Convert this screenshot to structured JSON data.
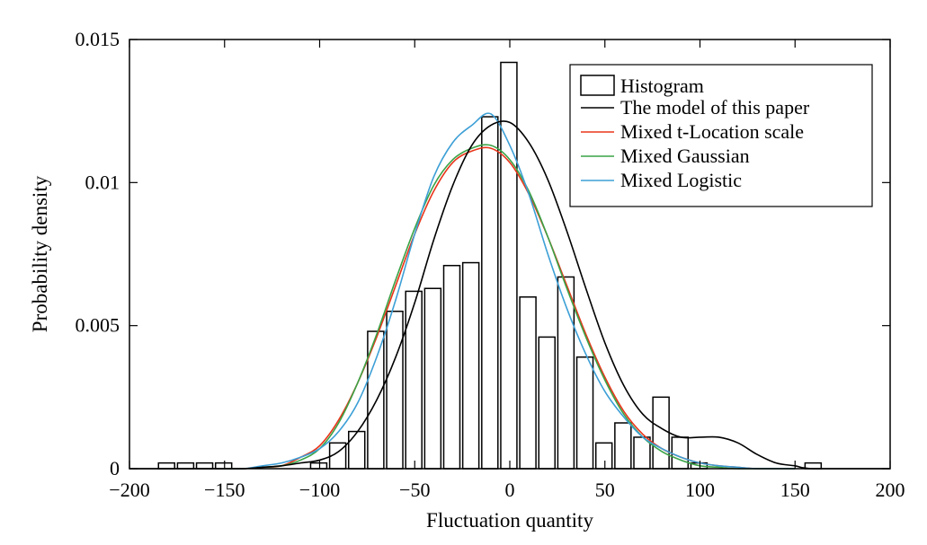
{
  "chart_data": {
    "type": "bar",
    "xlabel": "Fluctuation quantity",
    "ylabel": "Probability density",
    "xlim": [
      -200,
      200
    ],
    "ylim": [
      0,
      0.015
    ],
    "x_ticks": [
      -200,
      -150,
      -100,
      -50,
      0,
      50,
      100,
      150,
      200
    ],
    "x_tick_labels": [
      "−200",
      "−150",
      "−100",
      "−50",
      "0",
      "50",
      "100",
      "150",
      "200"
    ],
    "y_ticks": [
      0,
      0.005,
      0.01,
      0.015
    ],
    "y_tick_labels": [
      "0",
      "0.005",
      "0.01",
      "0.015"
    ],
    "grid": false,
    "legend_position": "top-right",
    "histogram": {
      "name": "Histogram",
      "bin_width": 8.5,
      "bins": [
        {
          "x": -180.5,
          "y": 0.0002
        },
        {
          "x": -170.5,
          "y": 0.0002
        },
        {
          "x": -160.5,
          "y": 0.0002
        },
        {
          "x": -150.5,
          "y": 0.0002
        },
        {
          "x": -100.5,
          "y": 0.0002
        },
        {
          "x": -90.5,
          "y": 0.0009
        },
        {
          "x": -80.5,
          "y": 0.0013
        },
        {
          "x": -70.5,
          "y": 0.0048
        },
        {
          "x": -60.5,
          "y": 0.0055
        },
        {
          "x": -50.5,
          "y": 0.0062
        },
        {
          "x": -40.5,
          "y": 0.0063
        },
        {
          "x": -30.5,
          "y": 0.0071
        },
        {
          "x": -20.5,
          "y": 0.0072
        },
        {
          "x": -10.5,
          "y": 0.0123
        },
        {
          "x": -0.5,
          "y": 0.0142
        },
        {
          "x": 9.5,
          "y": 0.006
        },
        {
          "x": 19.5,
          "y": 0.0046
        },
        {
          "x": 29.5,
          "y": 0.0067
        },
        {
          "x": 39.5,
          "y": 0.0039
        },
        {
          "x": 49.5,
          "y": 0.0009
        },
        {
          "x": 59.5,
          "y": 0.0016
        },
        {
          "x": 69.5,
          "y": 0.0011
        },
        {
          "x": 79.5,
          "y": 0.0025
        },
        {
          "x": 89.5,
          "y": 0.0011
        },
        {
          "x": 99.5,
          "y": 0.0002
        },
        {
          "x": 159.5,
          "y": 0.0002
        }
      ]
    },
    "series": [
      {
        "name": "The model of this paper",
        "color": "#000000",
        "points": [
          [
            -200,
            0
          ],
          [
            -150,
            0.0
          ],
          [
            -140,
            0.0
          ],
          [
            -130,
            5e-05
          ],
          [
            -120,
            0.0001
          ],
          [
            -110,
            0.0002
          ],
          [
            -100,
            0.0003
          ],
          [
            -90,
            0.0006
          ],
          [
            -80,
            0.0013
          ],
          [
            -70,
            0.0024
          ],
          [
            -60,
            0.0039
          ],
          [
            -50,
            0.0058
          ],
          [
            -40,
            0.008
          ],
          [
            -30,
            0.0099
          ],
          [
            -20,
            0.0113
          ],
          [
            -10,
            0.012
          ],
          [
            0,
            0.0121
          ],
          [
            10,
            0.0114
          ],
          [
            20,
            0.0101
          ],
          [
            30,
            0.0083
          ],
          [
            40,
            0.0063
          ],
          [
            50,
            0.0044
          ],
          [
            60,
            0.0029
          ],
          [
            70,
            0.0019
          ],
          [
            80,
            0.0014
          ],
          [
            90,
            0.0011
          ],
          [
            100,
            0.0011
          ],
          [
            110,
            0.0011
          ],
          [
            120,
            0.0009
          ],
          [
            130,
            0.0005
          ],
          [
            140,
            0.0002
          ],
          [
            150,
            0.0001
          ],
          [
            160,
            0.0
          ],
          [
            200,
            0
          ]
        ]
      },
      {
        "name": "Mixed t-Location scale",
        "color": "#e8351a",
        "points": [
          [
            -150,
            0.0
          ],
          [
            -140,
            0.0
          ],
          [
            -130,
            5e-05
          ],
          [
            -120,
            0.0001
          ],
          [
            -110,
            0.0004
          ],
          [
            -100,
            0.0008
          ],
          [
            -90,
            0.0017
          ],
          [
            -80,
            0.003
          ],
          [
            -70,
            0.0046
          ],
          [
            -60,
            0.0064
          ],
          [
            -50,
            0.0082
          ],
          [
            -40,
            0.0097
          ],
          [
            -30,
            0.0107
          ],
          [
            -20,
            0.0111
          ],
          [
            -10,
            0.0112
          ],
          [
            0,
            0.0107
          ],
          [
            10,
            0.0096
          ],
          [
            20,
            0.0081
          ],
          [
            30,
            0.0064
          ],
          [
            40,
            0.0047
          ],
          [
            50,
            0.0032
          ],
          [
            60,
            0.002
          ],
          [
            70,
            0.0012
          ],
          [
            80,
            0.0007
          ],
          [
            90,
            0.0004
          ],
          [
            100,
            0.0002
          ],
          [
            110,
            0.0001
          ],
          [
            120,
            5e-05
          ],
          [
            130,
            0.0
          ],
          [
            150,
            0.0
          ]
        ]
      },
      {
        "name": "Mixed Gaussian",
        "color": "#3aa346",
        "points": [
          [
            -150,
            0.0
          ],
          [
            -140,
            0.0
          ],
          [
            -130,
            5e-05
          ],
          [
            -120,
            0.0001
          ],
          [
            -110,
            0.0003
          ],
          [
            -100,
            0.0007
          ],
          [
            -90,
            0.0016
          ],
          [
            -80,
            0.003
          ],
          [
            -70,
            0.0047
          ],
          [
            -60,
            0.0066
          ],
          [
            -50,
            0.0084
          ],
          [
            -40,
            0.0099
          ],
          [
            -30,
            0.0108
          ],
          [
            -20,
            0.0112
          ],
          [
            -10,
            0.0113
          ],
          [
            0,
            0.0108
          ],
          [
            10,
            0.0097
          ],
          [
            20,
            0.0081
          ],
          [
            30,
            0.0063
          ],
          [
            40,
            0.0046
          ],
          [
            50,
            0.0031
          ],
          [
            60,
            0.0019
          ],
          [
            70,
            0.0011
          ],
          [
            80,
            0.0006
          ],
          [
            90,
            0.0003
          ],
          [
            100,
            0.0001
          ],
          [
            110,
            5e-05
          ],
          [
            120,
            0.0
          ],
          [
            150,
            0.0
          ]
        ]
      },
      {
        "name": "Mixed Logistic",
        "color": "#3c9fd6",
        "points": [
          [
            -150,
            0.0
          ],
          [
            -140,
            0.0
          ],
          [
            -130,
            0.0001
          ],
          [
            -120,
            0.0002
          ],
          [
            -110,
            0.0004
          ],
          [
            -100,
            0.0007
          ],
          [
            -90,
            0.0013
          ],
          [
            -80,
            0.0023
          ],
          [
            -70,
            0.0039
          ],
          [
            -60,
            0.0059
          ],
          [
            -50,
            0.0082
          ],
          [
            -40,
            0.0102
          ],
          [
            -30,
            0.0114
          ],
          [
            -20,
            0.012
          ],
          [
            -10,
            0.0124
          ],
          [
            0,
            0.0113
          ],
          [
            10,
            0.0096
          ],
          [
            20,
            0.0075
          ],
          [
            30,
            0.0056
          ],
          [
            40,
            0.004
          ],
          [
            50,
            0.0027
          ],
          [
            60,
            0.0018
          ],
          [
            70,
            0.0011
          ],
          [
            80,
            0.0007
          ],
          [
            90,
            0.0004
          ],
          [
            100,
            0.0002
          ],
          [
            110,
            0.0001
          ],
          [
            120,
            5e-05
          ],
          [
            130,
            0.0
          ],
          [
            150,
            0.0
          ]
        ]
      }
    ]
  }
}
